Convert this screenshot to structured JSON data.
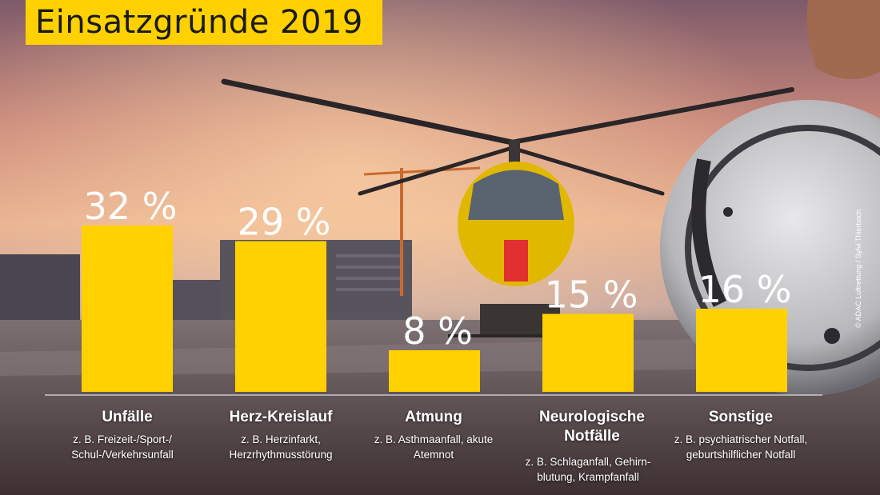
{
  "title": "Einsatzgründe 2019",
  "credit": "© ADAC Luftrettung / Sylvi Thierbach",
  "colors": {
    "bar": "#ffd100",
    "title_bg": "#ffd100",
    "text": "#ffffff"
  },
  "chart_data": {
    "type": "bar",
    "title": "Einsatzgründe 2019",
    "categories": [
      "Unfälle",
      "Herz-Kreislauf",
      "Atmung",
      "Neurologische Notfälle",
      "Sonstige"
    ],
    "values": [
      32,
      29,
      8,
      15,
      16
    ],
    "value_labels": [
      "32 %",
      "29 %",
      "8 %",
      "15 %",
      "16 %"
    ],
    "descriptions": [
      "z. B. Freizeit-/Sport-/ Schul-/Verkehrsunfall",
      "z. B. Herzinfarkt, Herzrhythmusstörung",
      "z. B. Asthmaanfall, akute Atemnot",
      "z. B. Schlaganfall, Gehirn- blutung, Krampfanfall",
      "z. B. psychiatrischer Notfall, geburtshilflicher Notfall"
    ],
    "unit": "%",
    "xlabel": "",
    "ylabel": "",
    "ylim": [
      0,
      32
    ],
    "grid": false,
    "legend": "none"
  }
}
